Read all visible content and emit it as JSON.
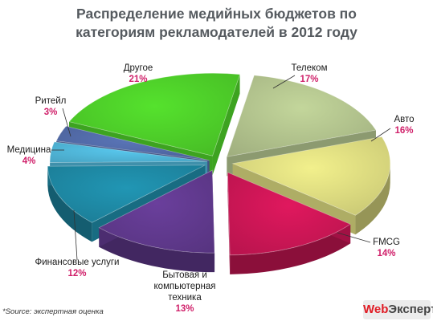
{
  "chart_data": {
    "type": "pie",
    "title_lines": [
      "Распределение медийных бюджетов по",
      "категориям рекламодателей в 2012 году"
    ],
    "slices": [
      {
        "label": "Телеком",
        "value": 17,
        "value_label": "17%",
        "color": "#c3d69b"
      },
      {
        "label": "Авто",
        "value": 16,
        "value_label": "16%",
        "color": "#f2f08c"
      },
      {
        "label": "FMCG",
        "value": 14,
        "value_label": "14%",
        "color": "#e0185e"
      },
      {
        "label": "Бытовая и компьютерная техника",
        "label_lines": [
          "Бытовая и",
          "компьютерная",
          "техника"
        ],
        "value": 13,
        "value_label": "13%",
        "color": "#6a3f9c"
      },
      {
        "label": "Финансовые услуги",
        "value": 12,
        "value_label": "12%",
        "color": "#2196b4"
      },
      {
        "label": "Медицина",
        "value": 4,
        "value_label": "4%",
        "color": "#58c8ee"
      },
      {
        "label": "Ритейл",
        "value": 3,
        "value_label": "3%",
        "color": "#5a75b8"
      },
      {
        "label": "Другое",
        "value": 21,
        "value_label": "21%",
        "color": "#55e22d"
      }
    ],
    "label_color": "#1a1a1a",
    "value_color": "#d0206a"
  },
  "footnote": "*Source: экспертная оценка",
  "logo": {
    "web": "Web",
    "rest": "Эксперт"
  }
}
